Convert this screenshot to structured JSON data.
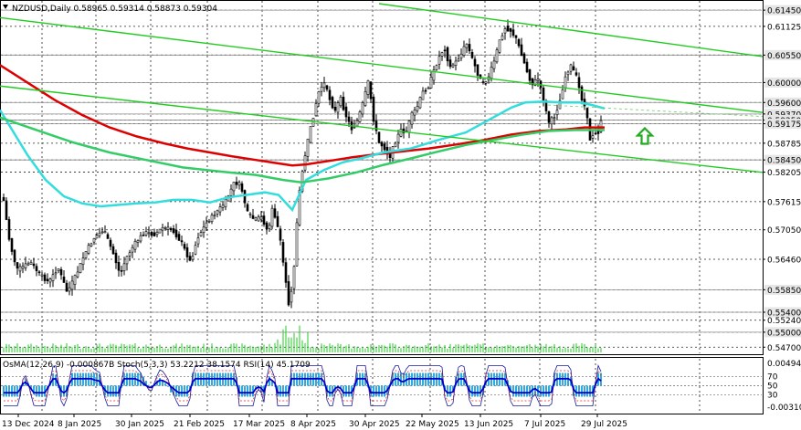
{
  "chart_data": {
    "type": "candlestick",
    "symbol_line": "NZDUSD,Daily  0.58965 0.59314 0.58873 0.59304",
    "ohlc_last": {
      "open": 0.58965,
      "high": 0.59314,
      "low": 0.58873,
      "close": 0.59304
    },
    "price_axis_labels": [
      "0.61450",
      "0.61125",
      "0.60550",
      "0.60000",
      "0.59600",
      "0.59370",
      "0.59250",
      "0.59175",
      "0.58785",
      "0.58450",
      "0.58205",
      "0.57615",
      "0.57050",
      "0.56460",
      "0.55850",
      "0.55400",
      "0.55240",
      "0.55000",
      "0.54700"
    ],
    "highlighted_levels": [
      "0.61450",
      "0.60550",
      "0.60000",
      "0.59600",
      "0.59370",
      "0.59250",
      "0.59175",
      "0.58450",
      "0.55850",
      "0.55400",
      "0.55000"
    ],
    "date_labels": [
      "13 Dec 2024",
      "8 Jan 2025",
      "30 Jan 2025",
      "21 Feb 2025",
      "17 Mar 2025",
      "8 Apr 2025",
      "30 Apr 2025",
      "22 May 2025",
      "13 Jun 2025",
      "7 Jul 2025",
      "29 Jul 2025"
    ],
    "ylim": [
      0.5465,
      0.6158
    ],
    "grid": true,
    "ma_series": [
      {
        "color": "#dd0000",
        "points": [
          [
            0,
            0.6035
          ],
          [
            30,
            0.6
          ],
          [
            60,
            0.5965
          ],
          [
            90,
            0.5935
          ],
          [
            120,
            0.591
          ],
          [
            150,
            0.5892
          ],
          [
            180,
            0.5878
          ],
          [
            205,
            0.5868
          ],
          [
            230,
            0.586
          ],
          [
            255,
            0.5852
          ],
          [
            280,
            0.5845
          ],
          [
            305,
            0.5838
          ],
          [
            320,
            0.5834
          ],
          [
            335,
            0.5836
          ],
          [
            360,
            0.5843
          ],
          [
            385,
            0.585
          ],
          [
            410,
            0.5856
          ],
          [
            440,
            0.5862
          ],
          [
            470,
            0.5868
          ],
          [
            500,
            0.5876
          ],
          [
            530,
            0.5885
          ],
          [
            560,
            0.5896
          ],
          [
            590,
            0.5903
          ],
          [
            620,
            0.5906
          ],
          [
            640,
            0.591
          ],
          [
            662,
            0.591
          ]
        ]
      },
      {
        "color": "#33dddd",
        "points": [
          [
            0,
            0.5945
          ],
          [
            15,
            0.59
          ],
          [
            30,
            0.5855
          ],
          [
            50,
            0.5805
          ],
          [
            70,
            0.5772
          ],
          [
            90,
            0.5758
          ],
          [
            110,
            0.5752
          ],
          [
            130,
            0.5755
          ],
          [
            150,
            0.5758
          ],
          [
            170,
            0.576
          ],
          [
            190,
            0.5765
          ],
          [
            210,
            0.5765
          ],
          [
            230,
            0.576
          ],
          [
            250,
            0.577
          ],
          [
            270,
            0.5775
          ],
          [
            290,
            0.578
          ],
          [
            305,
            0.5775
          ],
          [
            320,
            0.5745
          ],
          [
            335,
            0.5805
          ],
          [
            355,
            0.5825
          ],
          [
            375,
            0.584
          ],
          [
            395,
            0.5848
          ],
          [
            420,
            0.586
          ],
          [
            450,
            0.5868
          ],
          [
            480,
            0.5885
          ],
          [
            510,
            0.59
          ],
          [
            540,
            0.593
          ],
          [
            560,
            0.595
          ],
          [
            575,
            0.596
          ],
          [
            595,
            0.5962
          ],
          [
            615,
            0.596
          ],
          [
            635,
            0.596
          ],
          [
            648,
            0.5955
          ],
          [
            662,
            0.5948
          ]
        ]
      },
      {
        "color": "#33cc66",
        "points": [
          [
            0,
            0.593
          ],
          [
            40,
            0.5905
          ],
          [
            80,
            0.588
          ],
          [
            120,
            0.586
          ],
          [
            160,
            0.5845
          ],
          [
            200,
            0.583
          ],
          [
            240,
            0.5822
          ],
          [
            280,
            0.5815
          ],
          [
            310,
            0.5805
          ],
          [
            330,
            0.58
          ],
          [
            360,
            0.5808
          ],
          [
            390,
            0.582
          ],
          [
            420,
            0.5835
          ],
          [
            450,
            0.5848
          ],
          [
            480,
            0.5862
          ],
          [
            510,
            0.5875
          ],
          [
            540,
            0.5885
          ],
          [
            570,
            0.5895
          ],
          [
            600,
            0.5903
          ],
          [
            630,
            0.5905
          ],
          [
            662,
            0.5905
          ]
        ]
      }
    ],
    "channel_lines": [
      {
        "color": "#22cc22",
        "from": [
          415,
          0.6158
        ],
        "to": [
          835,
          0.6052
        ]
      },
      {
        "color": "#22cc22",
        "from": [
          0,
          0.5993
        ],
        "to": [
          835,
          0.582
        ]
      },
      {
        "color": "#22cc22",
        "from": [
          0,
          0.613
        ],
        "to": [
          835,
          0.594
        ]
      }
    ],
    "arrow": {
      "color": "#22aa22",
      "direction": "up",
      "x": 706,
      "price": 0.5892
    },
    "indicator": {
      "label": "OsMA(12,26,9) -0.000867B  Stoch(5,3,3) 53.2212 38.1574  RSI(14) 45.1709",
      "axis_labels": [
        "0.004947",
        "70",
        "50",
        "30",
        "-0.003104"
      ],
      "levels": [
        70,
        50,
        30
      ]
    }
  }
}
